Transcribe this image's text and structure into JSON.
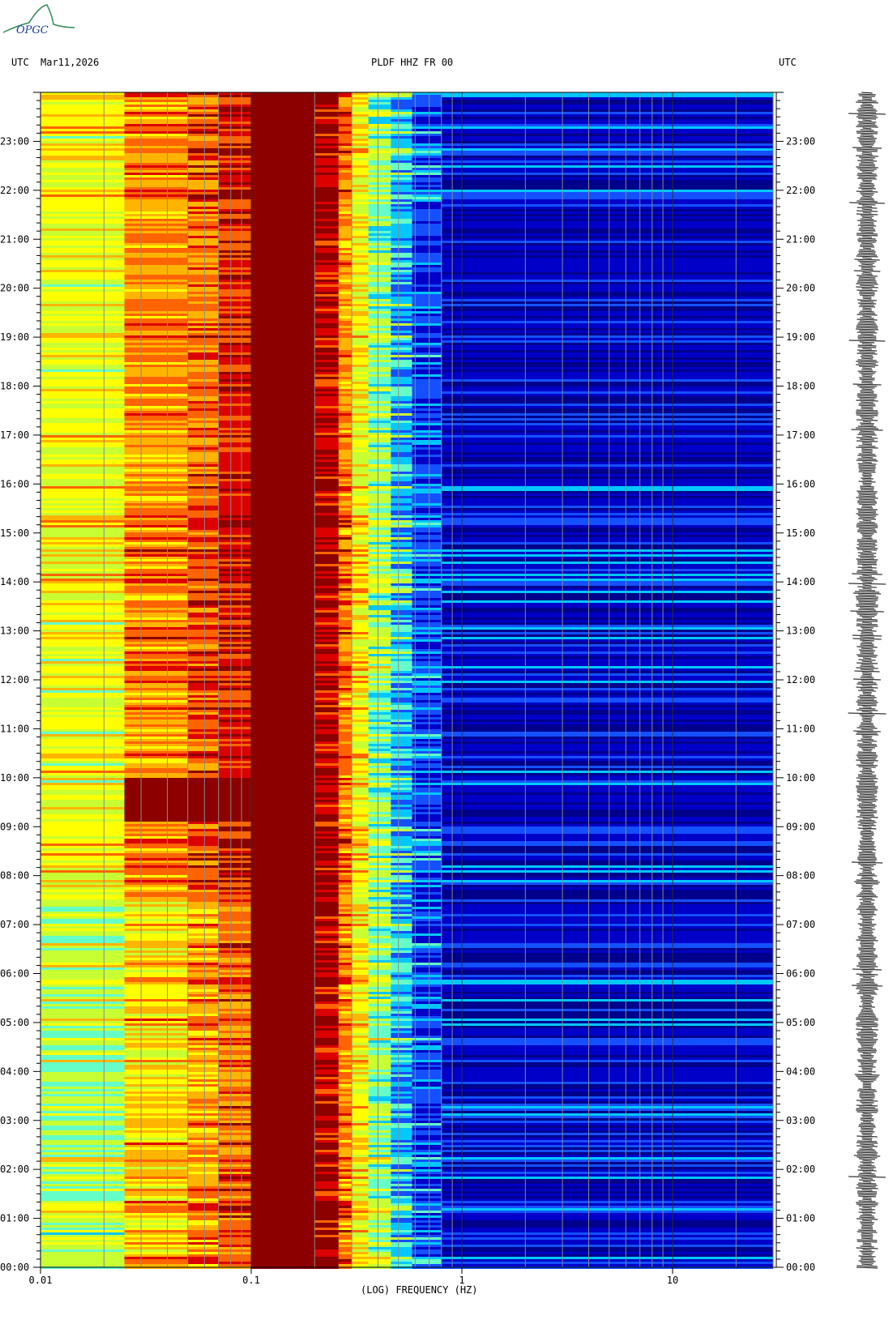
{
  "logo": {
    "text": "OPGC",
    "color": "#1a3a9c",
    "accent": "#2e8b57"
  },
  "header": {
    "left_tz": "UTC",
    "date": "Mar11,2026",
    "station": "PLDF HHZ FR 00",
    "right_tz": "UTC"
  },
  "chart_data": {
    "type": "heatmap",
    "title": "PLDF HHZ FR 00",
    "xlabel": "(LOG) FREQUENCY (HZ)",
    "x_scale": "log",
    "xlim": [
      0.01,
      30
    ],
    "x_ticks": [
      {
        "value": 0.01,
        "label": "0.01"
      },
      {
        "value": 0.1,
        "label": "0.1"
      },
      {
        "value": 1,
        "label": "1"
      },
      {
        "value": 10,
        "label": "10"
      }
    ],
    "y_axis": "time UTC (hours)",
    "ylim": [
      0,
      24
    ],
    "y_ticks": [
      "00:00",
      "01:00",
      "02:00",
      "03:00",
      "04:00",
      "05:00",
      "06:00",
      "07:00",
      "08:00",
      "09:00",
      "10:00",
      "11:00",
      "12:00",
      "13:00",
      "14:00",
      "15:00",
      "16:00",
      "17:00",
      "18:00",
      "19:00",
      "20:00",
      "21:00",
      "22:00",
      "23:00"
    ],
    "colormap": [
      "#00008c",
      "#0000c8",
      "#1450ff",
      "#00c8ff",
      "#64ffc8",
      "#c8ff32",
      "#ffff00",
      "#ffb400",
      "#ff6400",
      "#dc0000",
      "#8c0000"
    ],
    "spectrum_bands": [
      {
        "f_start": 0.01,
        "f_end": 0.025,
        "level": 0.55
      },
      {
        "f_start": 0.025,
        "f_end": 0.05,
        "level": 0.72
      },
      {
        "f_start": 0.05,
        "f_end": 0.07,
        "level": 0.78
      },
      {
        "f_start": 0.07,
        "f_end": 0.1,
        "level": 0.86
      },
      {
        "f_start": 0.1,
        "f_end": 0.2,
        "level": 1.0
      },
      {
        "f_start": 0.2,
        "f_end": 0.26,
        "level": 0.92
      },
      {
        "f_start": 0.26,
        "f_end": 0.3,
        "level": 0.74
      },
      {
        "f_start": 0.3,
        "f_end": 0.36,
        "level": 0.58
      },
      {
        "f_start": 0.36,
        "f_end": 0.46,
        "level": 0.42
      },
      {
        "f_start": 0.46,
        "f_end": 0.58,
        "level": 0.28
      },
      {
        "f_start": 0.58,
        "f_end": 0.8,
        "level": 0.16
      },
      {
        "f_start": 0.8,
        "f_end": 30,
        "level": 0.06
      }
    ],
    "events": [
      {
        "t_start": 9.15,
        "t_end": 10.0,
        "f_start": 0.025,
        "f_end": 0.1,
        "level": 1.0
      }
    ],
    "seismogram": {
      "label": "HHZ trace",
      "color": "#000000"
    }
  }
}
